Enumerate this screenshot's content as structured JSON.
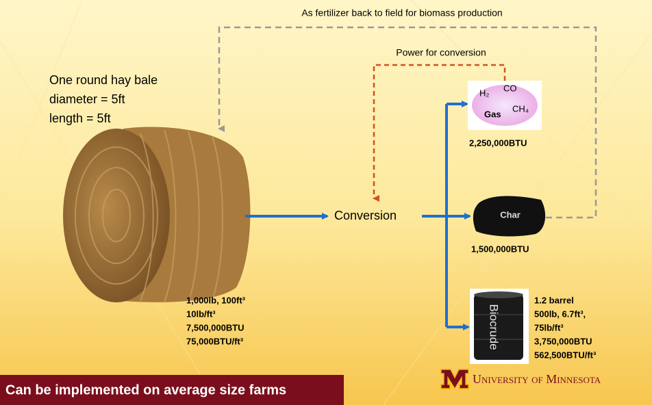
{
  "top_loop": {
    "label": "As fertilizer back to field for biomass production"
  },
  "power_loop": {
    "label": "Power for conversion"
  },
  "bale": {
    "description": [
      "One round hay bale",
      "diameter = 5ft",
      "length = 5ft"
    ],
    "stats": [
      "1,000lb, 100ft³",
      "10lb/ft³",
      "7,500,000BTU",
      "75,000BTU/ft³"
    ]
  },
  "conversion": {
    "label": "Conversion"
  },
  "gas": {
    "molecules": [
      "H₂",
      "CO",
      "CH₄"
    ],
    "label": "Gas",
    "energy": "2,250,000BTU"
  },
  "char": {
    "label": "Char",
    "energy": "1,500,000BTU"
  },
  "biocrude": {
    "label": "Biocrude",
    "stats": [
      "1.2 barrel",
      "500lb, 6.7ft³,",
      "75lb/ft³",
      "3,750,000BTU",
      "562,500BTU/ft³"
    ]
  },
  "footer": {
    "text": "Can be implemented on average size farms"
  },
  "logo": {
    "text": "University of Minnesota"
  }
}
